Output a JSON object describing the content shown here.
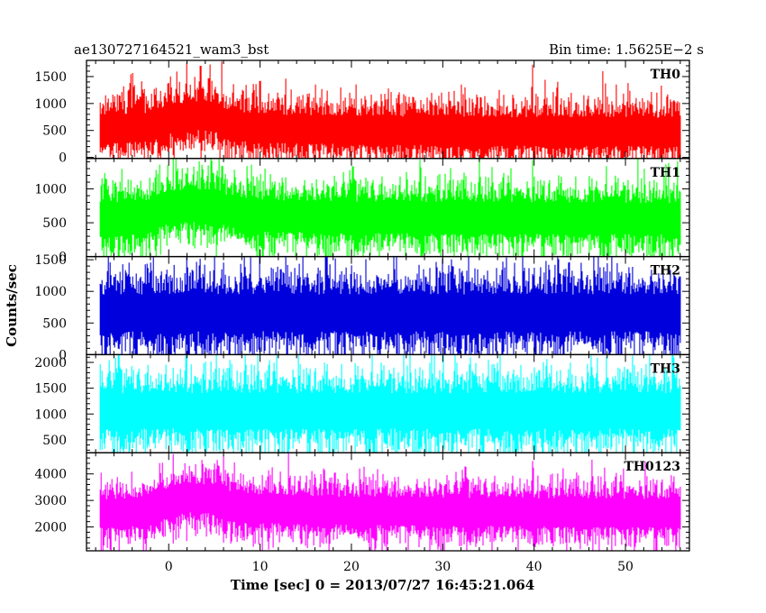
{
  "chart_data": {
    "type": "line",
    "title_left": "ae130727164521_wam3_bst",
    "title_right": "Bin time: 1.5625E−2 s",
    "xlabel": "Time [sec] 0 = 2013/07/27 16:45:21.064",
    "ylabel": "Counts/sec",
    "xlim": [
      -9,
      57
    ],
    "x_ticks": [
      0,
      10,
      20,
      30,
      40,
      50
    ],
    "x_minor_step": 2,
    "data_range": [
      -7.5,
      56
    ],
    "grid": false,
    "panels": [
      {
        "name": "TH0",
        "color": "#ff0000",
        "ylim": [
          -20,
          1800
        ],
        "y_ticks": [
          0,
          500,
          1000,
          1500
        ],
        "mean_profile": [
          [
            -7.5,
            520
          ],
          [
            -2,
            560
          ],
          [
            0,
            700
          ],
          [
            3,
            780
          ],
          [
            5,
            760
          ],
          [
            6,
            650
          ],
          [
            8,
            580
          ],
          [
            10,
            540
          ],
          [
            15,
            520
          ],
          [
            30,
            490
          ],
          [
            56,
            470
          ]
        ],
        "noise": 260,
        "spikes": [
          [
            2,
            1750
          ],
          [
            3.5,
            1700
          ],
          [
            5.8,
            1780
          ],
          [
            10,
            1420
          ],
          [
            39.8,
            1720
          ],
          [
            47.5,
            1600
          ]
        ]
      },
      {
        "name": "TH1",
        "color": "#00ff00",
        "ylim": [
          0,
          1450
        ],
        "y_ticks": [
          0,
          500,
          1000
        ],
        "mean_profile": [
          [
            -7.5,
            560
          ],
          [
            -2,
            600
          ],
          [
            0,
            730
          ],
          [
            3,
            760
          ],
          [
            5,
            740
          ],
          [
            7,
            660
          ],
          [
            10,
            600
          ],
          [
            20,
            580
          ],
          [
            56,
            560
          ]
        ],
        "noise": 230,
        "spikes": [
          [
            0.5,
            1450
          ],
          [
            5.5,
            1440
          ],
          [
            26,
            1250
          ]
        ]
      },
      {
        "name": "TH2",
        "color": "#0000dd",
        "ylim": [
          0,
          1550
        ],
        "y_ticks": [
          0,
          500,
          1000,
          1500
        ],
        "mean_profile": [
          [
            -7.5,
            660
          ],
          [
            56,
            660
          ]
        ],
        "noise": 290,
        "spikes": [
          [
            2,
            1540
          ],
          [
            5,
            1550
          ],
          [
            30,
            1520
          ]
        ]
      },
      {
        "name": "TH3",
        "color": "#00ffff",
        "ylim": [
          250,
          2150
        ],
        "y_ticks": [
          500,
          1000,
          1500,
          2000
        ],
        "mean_profile": [
          [
            -7.5,
            1060
          ],
          [
            56,
            1060
          ]
        ],
        "noise": 340,
        "spikes": [
          [
            33,
            2100
          ],
          [
            35,
            2050
          ]
        ]
      },
      {
        "name": "TH0123",
        "color": "#ff00ff",
        "ylim": [
          1100,
          4800
        ],
        "y_ticks": [
          2000,
          3000,
          4000
        ],
        "mean_profile": [
          [
            -7.5,
            2500
          ],
          [
            -2,
            2600
          ],
          [
            0,
            2950
          ],
          [
            3,
            3100
          ],
          [
            5,
            3050
          ],
          [
            6.5,
            2850
          ],
          [
            9,
            2700
          ],
          [
            20,
            2600
          ],
          [
            56,
            2520
          ]
        ],
        "noise": 520,
        "spikes": [
          [
            0.5,
            4750
          ],
          [
            6,
            4700
          ]
        ]
      }
    ]
  }
}
